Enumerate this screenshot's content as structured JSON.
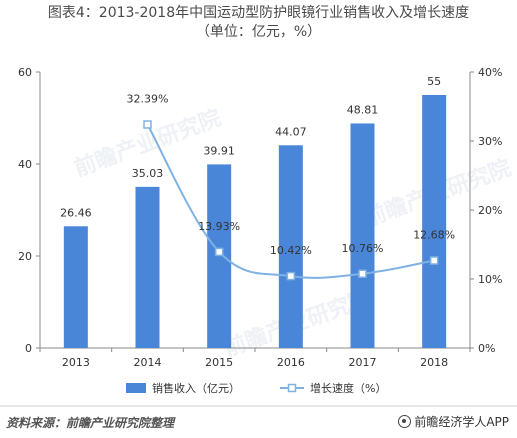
{
  "title_line1": "图表4：2013-2018年中国运动型防护眼镜行业销售收入及增长速度",
  "title_line2": "（单位：亿元，%）",
  "watermark": "前瞻产业研究院",
  "footer": {
    "source": "资料来源：前瞻产业研究院整理",
    "brand": "前瞻经济学人APP",
    "brand_icon": "qianzhan-logo-icon"
  },
  "colors": {
    "bar": "#4a86d8",
    "line": "#7fb2e3",
    "axis": "#888888"
  },
  "chart_data": {
    "type": "bar+line",
    "categories": [
      "2013",
      "2014",
      "2015",
      "2016",
      "2017",
      "2018"
    ],
    "series": [
      {
        "name": "销售收入（亿元）",
        "type": "bar",
        "axis": "left",
        "values": [
          26.46,
          35.03,
          39.91,
          44.07,
          48.81,
          55
        ],
        "labels": [
          "26.46",
          "35.03",
          "39.91",
          "44.07",
          "48.81",
          "55"
        ]
      },
      {
        "name": "增长速度（%）",
        "type": "line",
        "axis": "right",
        "values": [
          null,
          32.39,
          13.93,
          10.42,
          10.76,
          12.68
        ],
        "labels": [
          "",
          "32.39%",
          "13.93%",
          "10.42%",
          "10.76%",
          "12.68%"
        ]
      }
    ],
    "y_left": {
      "min": 0,
      "max": 60,
      "ticks": [
        0,
        20,
        40,
        60
      ],
      "tick_labels": [
        "0",
        "20",
        "40",
        "60"
      ]
    },
    "y_right": {
      "min": 0,
      "max": 40,
      "ticks": [
        0,
        10,
        20,
        30,
        40
      ],
      "tick_labels": [
        "0%",
        "10%",
        "20%",
        "30%",
        "40%"
      ]
    },
    "legend_position": "bottom",
    "grid": false
  }
}
